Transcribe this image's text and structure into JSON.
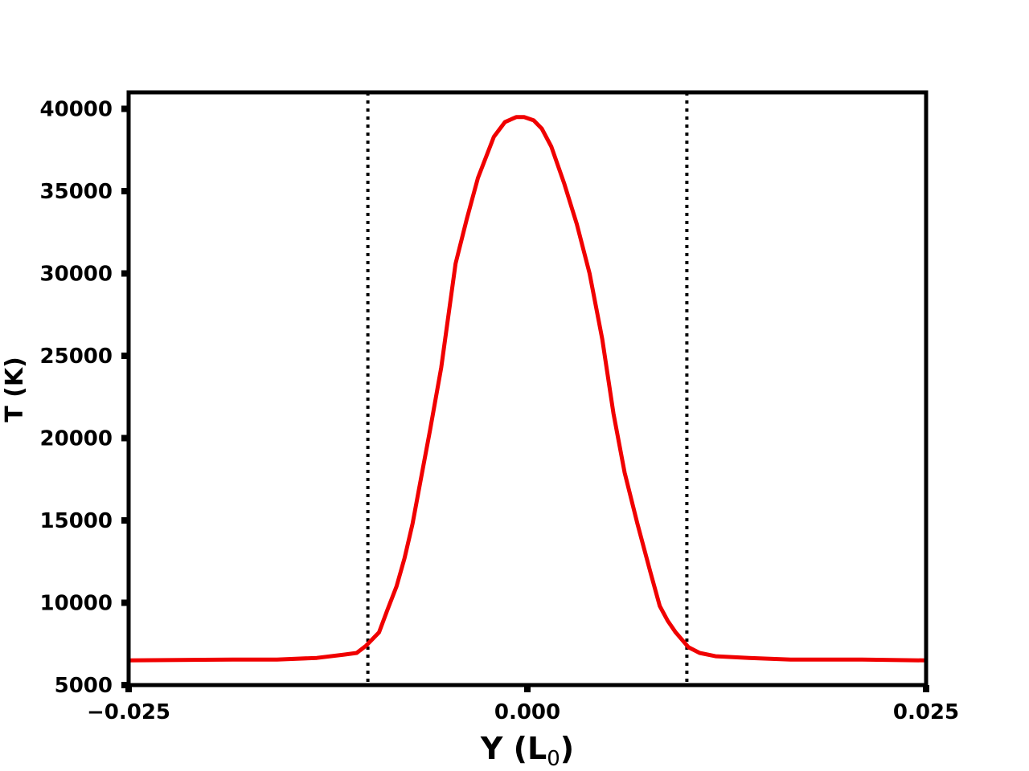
{
  "chart_data": {
    "type": "line",
    "title": "",
    "xlabel": "Y (L",
    "xlabel_subscript": "0",
    "xlabel_suffix": ")",
    "ylabel": "T (K)",
    "xlim": [
      -0.025,
      0.025
    ],
    "ylim": [
      5000,
      41000
    ],
    "xticks": [
      -0.025,
      0.0,
      0.025
    ],
    "xtick_labels": [
      "−0.025",
      "0.000",
      "0.025"
    ],
    "yticks": [
      5000,
      10000,
      15000,
      20000,
      25000,
      30000,
      35000,
      40000
    ],
    "ytick_labels": [
      "5000",
      "10000",
      "15000",
      "20000",
      "25000",
      "30000",
      "35000",
      "40000"
    ],
    "grid": false,
    "legend": "none",
    "vlines": [
      {
        "x": -0.01,
        "style": "dotted",
        "color": "#000000"
      },
      {
        "x": 0.01,
        "style": "dotted",
        "color": "#000000"
      }
    ],
    "series": [
      {
        "color": "#f00000",
        "x": [
          -0.025,
          -0.0185,
          -0.0157,
          -0.0132,
          -0.0115,
          -0.0107,
          -0.0101,
          -0.0093,
          -0.0088,
          -0.0082,
          -0.0077,
          -0.0072,
          -0.0067,
          -0.0061,
          -0.0054,
          -0.0045,
          -0.0038,
          -0.0031,
          -0.0021,
          -0.0014,
          -0.0007,
          -0.0002,
          0.0004,
          0.0009,
          0.0015,
          0.0023,
          0.0031,
          0.0039,
          0.0047,
          0.0054,
          0.0061,
          0.0069,
          0.0077,
          0.0083,
          0.0088,
          0.0093,
          0.0101,
          0.0108,
          0.0118,
          0.0139,
          0.0165,
          0.021,
          0.025
        ],
        "y": [
          6500,
          6550,
          6550,
          6650,
          6850,
          6950,
          7400,
          8200,
          9500,
          11000,
          12700,
          14800,
          17400,
          20500,
          24300,
          30600,
          33300,
          35800,
          38300,
          39200,
          39500,
          39500,
          39300,
          38800,
          37700,
          35500,
          33000,
          30000,
          26000,
          21500,
          17900,
          14800,
          11900,
          9800,
          8900,
          8200,
          7300,
          6950,
          6750,
          6650,
          6550,
          6550,
          6500
        ]
      }
    ]
  }
}
